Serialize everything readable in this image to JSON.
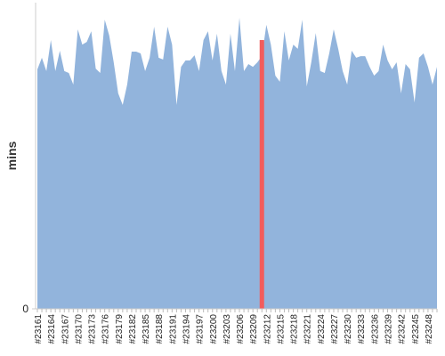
{
  "chart_data": {
    "type": "area",
    "ylabel": "mins",
    "color": "#92b4dc",
    "categories": [
      "#23161",
      null,
      null,
      "#23164",
      null,
      null,
      "#23167",
      null,
      null,
      "#23170",
      null,
      null,
      "#23173",
      null,
      null,
      "#23176",
      null,
      null,
      "#23179",
      null,
      null,
      "#23182",
      null,
      null,
      "#23185",
      null,
      null,
      "#23188",
      null,
      null,
      "#23191",
      null,
      null,
      "#23194",
      null,
      null,
      "#23197",
      null,
      null,
      "#23200",
      null,
      null,
      "#23203",
      null,
      null,
      "#23206",
      null,
      null,
      "#23209",
      null,
      null,
      "#23212",
      null,
      null,
      "#23215",
      null,
      null,
      "#23218",
      null,
      null,
      "#23221",
      null,
      null,
      "#23224",
      null,
      null,
      "#23227",
      null,
      null,
      "#23230",
      null,
      null,
      "#23233",
      null,
      null,
      "#23236",
      null,
      null,
      "#23239",
      null,
      null,
      "#23242",
      null,
      null,
      "#23245",
      null,
      null,
      "#23248",
      null,
      null
    ],
    "values": [
      78.7,
      82.5,
      78.1,
      88.3,
      78.1,
      84.8,
      78.1,
      77.5,
      73.7,
      91.8,
      86.8,
      87.7,
      91.2,
      78.9,
      77.5,
      95.0,
      89.8,
      81.0,
      70.8,
      67.0,
      73.7,
      84.5,
      84.5,
      83.9,
      78.1,
      82.5,
      92.7,
      82.5,
      81.9,
      92.7,
      86.8,
      67.0,
      79.5,
      81.6,
      81.6,
      83.3,
      78.1,
      88.3,
      91.2,
      81.6,
      90.4,
      78.1,
      73.7,
      90.4,
      78.1,
      95.6,
      78.1,
      80.4,
      79.5,
      81.0,
      83.0,
      93.3,
      86.8,
      76.6,
      74.6,
      91.2,
      81.6,
      86.8,
      85.4,
      95.0,
      73.1,
      81.0,
      90.6,
      78.1,
      77.5,
      83.9,
      91.8,
      85.4,
      78.1,
      73.7,
      84.8,
      82.5,
      83.0,
      83.0,
      79.5,
      76.6,
      78.1,
      86.8,
      81.6,
      78.7,
      81.0,
      70.8,
      80.4,
      78.7,
      67.8,
      82.5,
      83.9,
      79.5,
      73.7,
      79.5
    ],
    "ylim": [
      0,
      100
    ],
    "yticks": [
      0
    ],
    "highlight": {
      "index": 50,
      "color": "#f25c5c"
    }
  }
}
